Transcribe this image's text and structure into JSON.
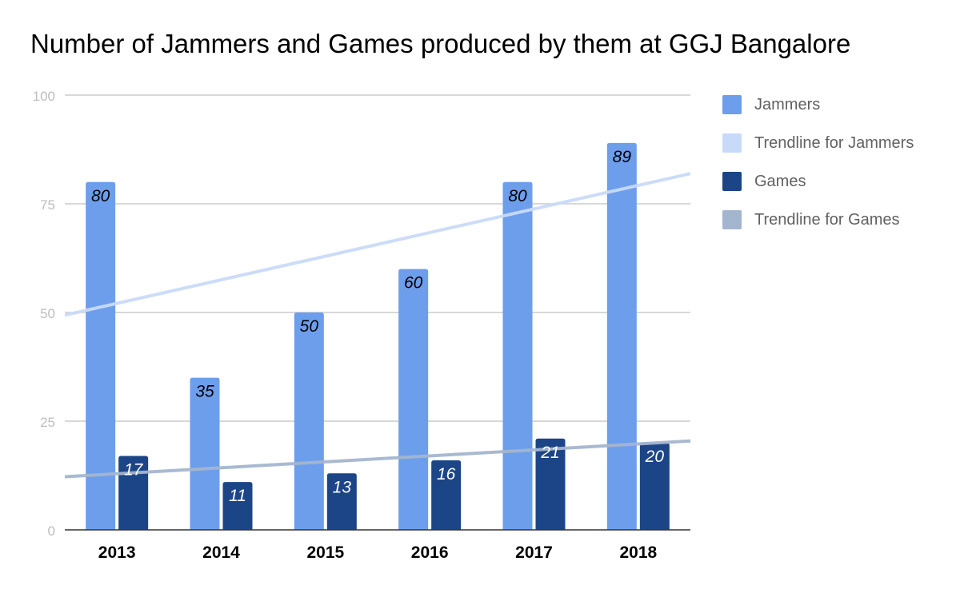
{
  "chart_data": {
    "type": "bar",
    "title": "Number of Jammers and Games produced by them at GGJ Bangalore",
    "xlabel": "",
    "ylabel": "",
    "categories": [
      "2013",
      "2014",
      "2015",
      "2016",
      "2017",
      "2018"
    ],
    "ylim": [
      0,
      100
    ],
    "yticks": [
      "0",
      "25",
      "50",
      "75",
      "100"
    ],
    "grid": true,
    "legend_position": "right",
    "series": [
      {
        "name": "Jammers",
        "values": [
          80,
          35,
          50,
          60,
          80,
          89
        ],
        "color": "#6d9eeb"
      },
      {
        "name": "Games",
        "values": [
          17,
          11,
          13,
          16,
          21,
          20
        ],
        "color": "#1c4587"
      }
    ],
    "trendlines": [
      {
        "name": "Trendline for Jammers",
        "of": "Jammers",
        "color": "#c9daf8",
        "type": "linear"
      },
      {
        "name": "Trendline for Games",
        "of": "Games",
        "color": "#a4b5cf",
        "type": "linear"
      }
    ]
  },
  "legend": {
    "items": [
      {
        "label": "Jammers",
        "color": "#6d9eeb"
      },
      {
        "label": "Trendline for Jammers",
        "color": "#c9daf8"
      },
      {
        "label": "Games",
        "color": "#1c4587"
      },
      {
        "label": "Trendline for Games",
        "color": "#a4b5cf"
      }
    ]
  }
}
